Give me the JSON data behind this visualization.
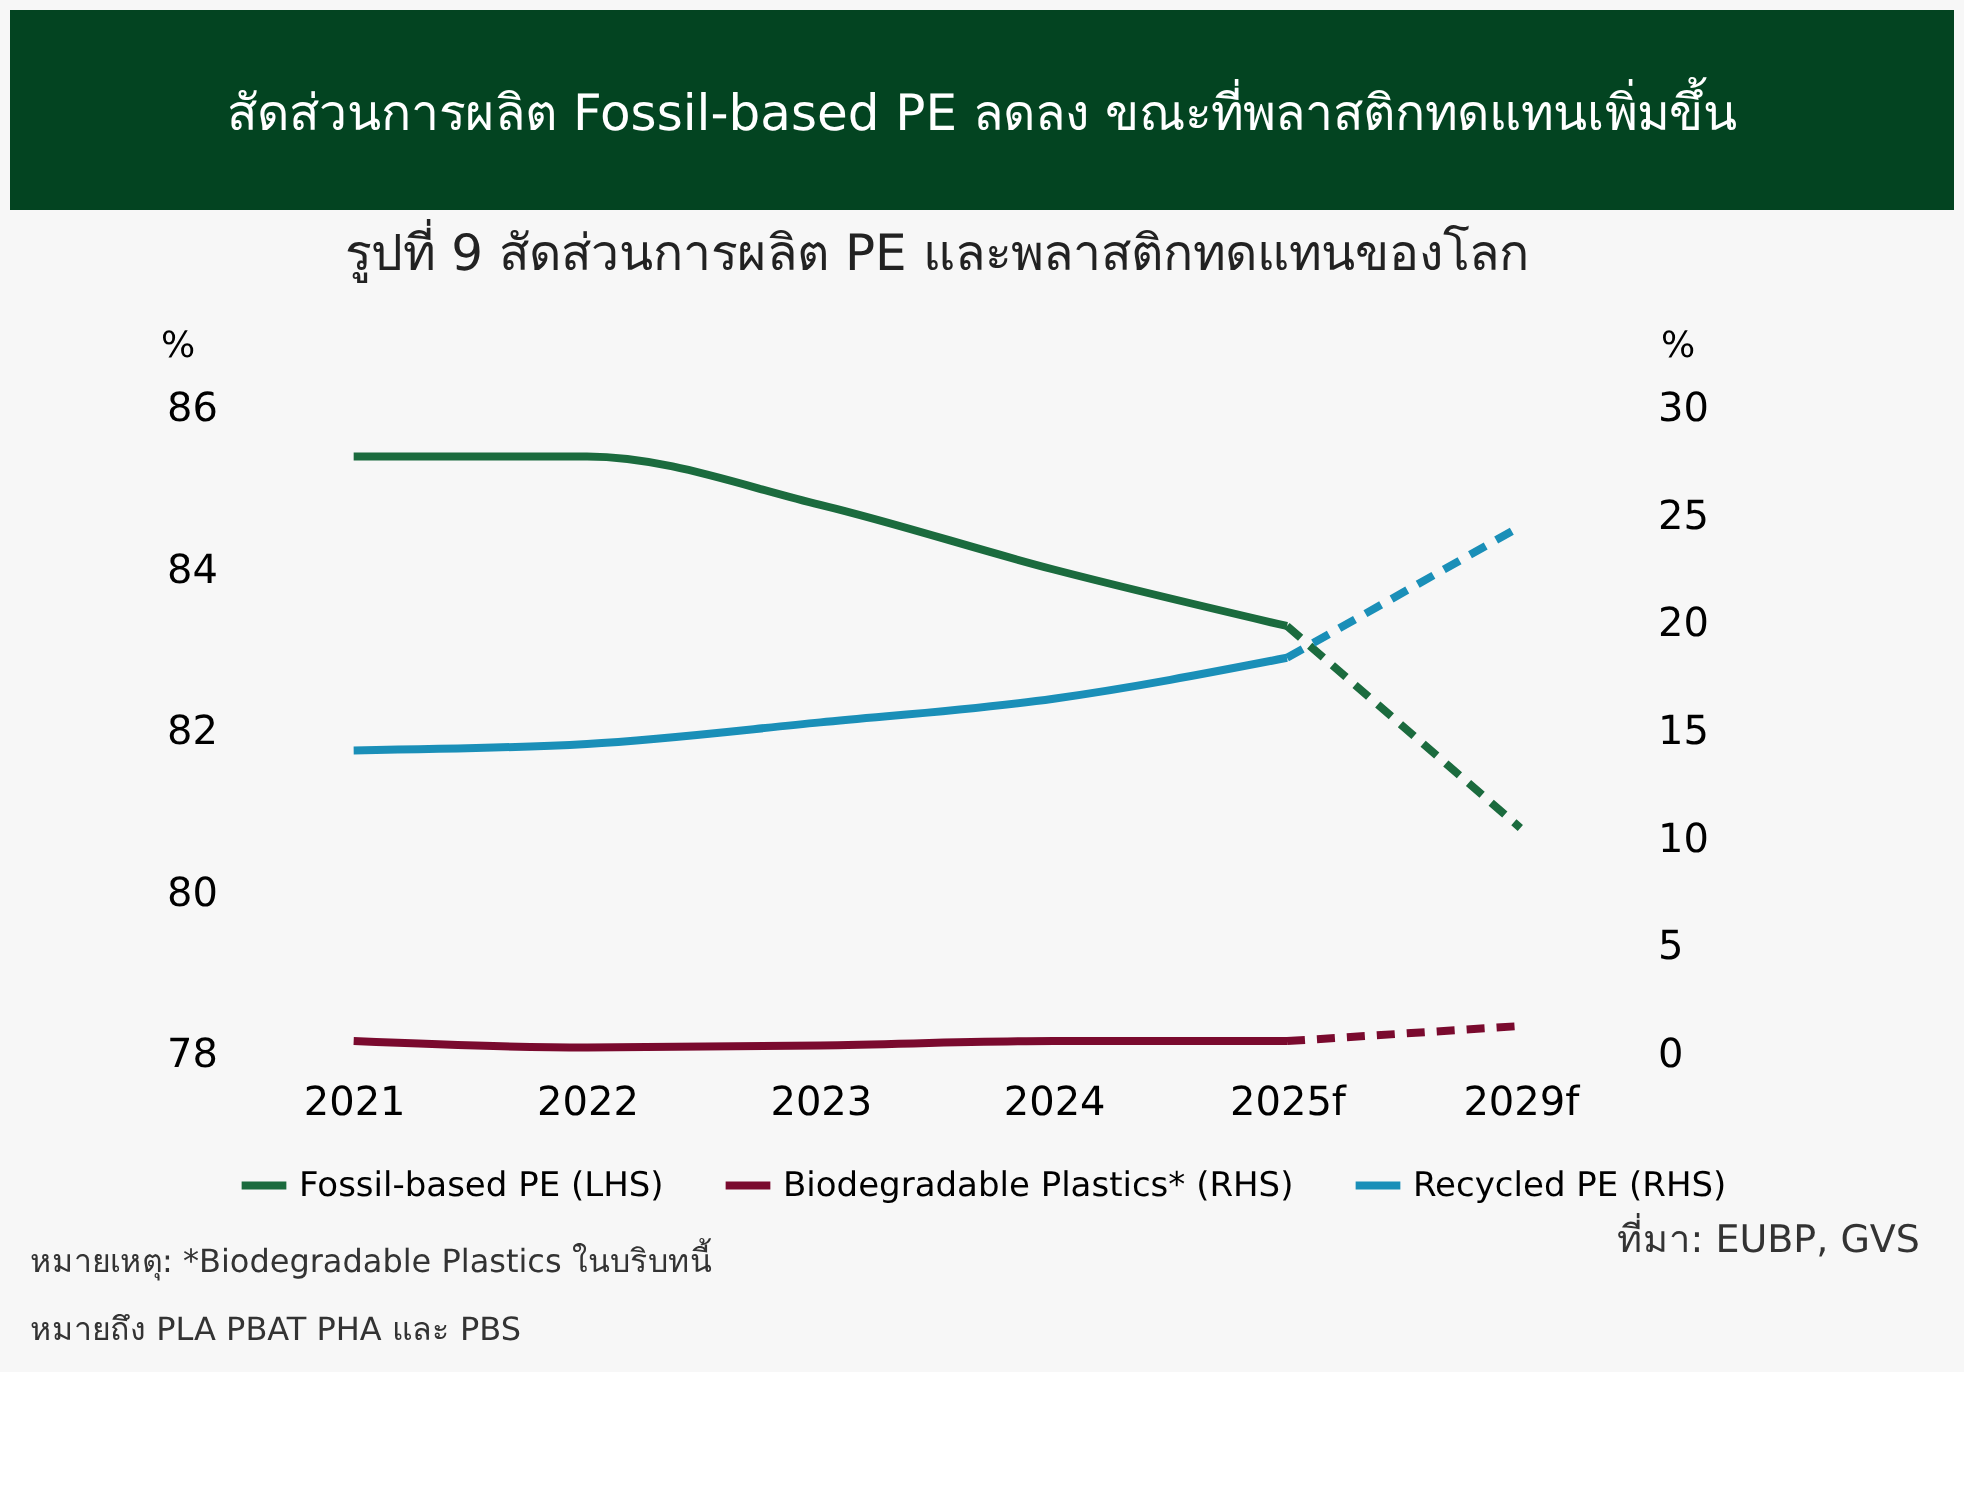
{
  "chart_data": {
    "type": "line",
    "title": "สัดส่วนการผลิต Fossil-based PE ลดลง ขณะที่พลาสติกทดแทนเพิ่มขึ้น",
    "subtitle": "รูปที่ 9 สัดส่วนการผลิต PE และพลาสติกทดแทนของโลก",
    "ylabel": "%",
    "y2label": "%",
    "categories": [
      "2021",
      "2022",
      "2023",
      "2024",
      "2025f",
      "2029f"
    ],
    "series": [
      {
        "name": "Fossil-based PE (LHS)",
        "color": "#1b6b3e",
        "values": [
          85.4,
          85.4,
          84.8,
          84.0,
          83.3,
          null
        ]
      },
      {
        "color": "#1b6b3e",
        "line_style": "dashed",
        "values": [
          null,
          null,
          null,
          null,
          83.3,
          80.8
        ]
      },
      {
        "name": "Biodegradable Plastics* (RHS)",
        "color": "#7a0a2e",
        "axis": "y2",
        "values": [
          0.6,
          0.3,
          0.4,
          0.6,
          0.6,
          null
        ]
      },
      {
        "color": "#7a0a2e",
        "axis": "y2",
        "line_style": "dashed",
        "values": [
          null,
          null,
          null,
          null,
          0.6,
          1.3
        ]
      },
      {
        "name": "Recycled PE (RHS)",
        "color": "#1a8fb8",
        "axis": "y2",
        "values": [
          14.1,
          14.4,
          15.4,
          16.5,
          18.4,
          null
        ]
      },
      {
        "color": "#1a8fb8",
        "axis": "y2",
        "line_style": "dashed",
        "values": [
          null,
          null,
          null,
          null,
          18.4,
          24.5
        ]
      }
    ],
    "ylim": [
      78,
      86
    ],
    "yticks": [
      78,
      80,
      82,
      84,
      86
    ],
    "y2lim": [
      0,
      30
    ],
    "y2ticks": [
      0,
      5,
      10,
      15,
      20,
      25,
      30
    ],
    "legend": "bottom",
    "annotations": [
      "หมายเหตุ: *Biodegradable Plastics ในบริบทนี้\nหมายถึง PLA PBAT PHA และ PBS",
      "ที่มา: EUBP, GVS"
    ]
  }
}
